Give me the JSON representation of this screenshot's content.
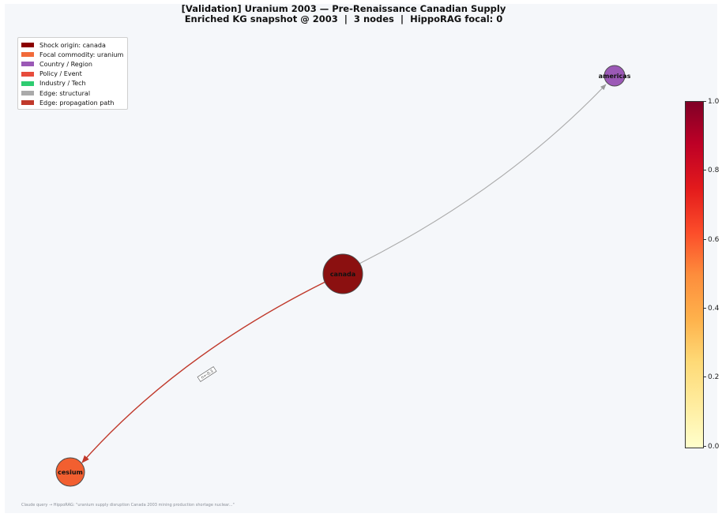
{
  "title": {
    "line1": "[Validation] Uranium 2003 — Pre-Renaissance Canadian Supply",
    "line2": "Enriched KG snapshot @ 2003  |  3 nodes  |  HippoRAG focal: 0"
  },
  "legend": {
    "items": [
      {
        "label": "Shock origin: canada",
        "color": "#8b0000"
      },
      {
        "label": "Focal commodity: uranium",
        "color": "#f26b3a"
      },
      {
        "label": "Country / Region",
        "color": "#9b59b6"
      },
      {
        "label": "Policy / Event",
        "color": "#e74c3c"
      },
      {
        "label": "Industry / Tech",
        "color": "#2ecc71"
      },
      {
        "label": "Edge: structural",
        "color": "#aaaaaa"
      },
      {
        "label": "Edge: propagation path",
        "color": "#c0392b"
      }
    ]
  },
  "nodes": [
    {
      "id": "canada",
      "label": "canada",
      "color": "#8b1010"
    },
    {
      "id": "americas",
      "label": "americas",
      "color": "#9b59b6"
    },
    {
      "id": "cesium",
      "label": "cesium",
      "color": "#f25f30"
    }
  ],
  "edges": [
    {
      "from": "canada",
      "to": "americas",
      "type": "structural",
      "color": "#aaaaaa",
      "label": ""
    },
    {
      "from": "canada",
      "to": "cesium",
      "type": "propagation",
      "color": "#c0392b",
      "label": "n=-0.3"
    }
  ],
  "colorbar": {
    "ticks": [
      "1.0",
      "0.8",
      "0.6",
      "0.4",
      "0.2",
      "0.0"
    ]
  },
  "footer": "Claude query → HippoRAG: \"uranium supply disruption Canada 2003 mining production shortage nuclear...\""
}
